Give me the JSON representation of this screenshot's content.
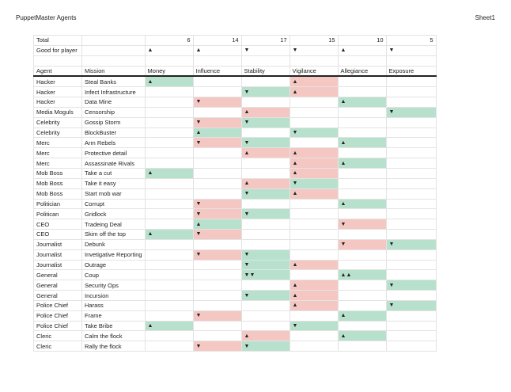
{
  "title": "PuppetMaster Agents",
  "sheet": "Sheet1",
  "totals": {
    "label": "Total",
    "values": [
      "6",
      "14",
      "17",
      "15",
      "10",
      "5"
    ]
  },
  "good_for_player": {
    "label": "Good for player",
    "values": [
      "▲",
      "▲",
      "▼",
      "▼",
      "▲",
      "▼"
    ]
  },
  "headers": [
    "Agent",
    "Mission",
    "Money",
    "Influence",
    "Stability",
    "Vigilance",
    "Allegiance",
    "Exposure"
  ],
  "colors": {
    "good": "#b7e1cd",
    "bad": "#f4c7c3"
  },
  "rows": [
    {
      "agent": "Hacker",
      "mission": "Steal Banks",
      "cells": [
        [
          "▲",
          "good"
        ],
        null,
        null,
        [
          "▲",
          "bad"
        ],
        null,
        null
      ]
    },
    {
      "agent": "Hacker",
      "mission": "Infect Infrastructure",
      "cells": [
        null,
        null,
        [
          "▼",
          "good"
        ],
        [
          "▲",
          "bad"
        ],
        null,
        null
      ]
    },
    {
      "agent": "Hacker",
      "mission": "Data Mine",
      "cells": [
        null,
        [
          "▼",
          "bad"
        ],
        null,
        null,
        [
          "▲",
          "good"
        ],
        null
      ]
    },
    {
      "agent": "Media Moguls",
      "mission": "Censorship",
      "cells": [
        null,
        null,
        [
          "▲",
          "bad"
        ],
        null,
        null,
        [
          "▼",
          "good"
        ]
      ]
    },
    {
      "agent": "Celebrity",
      "mission": "Gossip Storm",
      "cells": [
        null,
        [
          "▼",
          "bad"
        ],
        [
          "▼",
          "good"
        ],
        null,
        null,
        null
      ]
    },
    {
      "agent": "Celebrity",
      "mission": "BlockBuster",
      "cells": [
        null,
        [
          "▲",
          "good"
        ],
        null,
        [
          "▼",
          "good"
        ],
        null,
        null
      ]
    },
    {
      "agent": "Merc",
      "mission": "Arm Rebels",
      "cells": [
        null,
        [
          "▼",
          "bad"
        ],
        [
          "▼",
          "good"
        ],
        null,
        [
          "▲",
          "good"
        ],
        null
      ]
    },
    {
      "agent": "Merc",
      "mission": "Protective detail",
      "cells": [
        null,
        null,
        [
          "▲",
          "bad"
        ],
        [
          "▲",
          "bad"
        ],
        null,
        null
      ]
    },
    {
      "agent": "Merc",
      "mission": "Assassinate Rivals",
      "cells": [
        null,
        null,
        null,
        [
          "▲",
          "bad"
        ],
        [
          "▲",
          "good"
        ],
        null
      ]
    },
    {
      "agent": "Mob Boss",
      "mission": "Take a cut",
      "cells": [
        [
          "▲",
          "good"
        ],
        null,
        null,
        [
          "▲",
          "bad"
        ],
        null,
        null
      ]
    },
    {
      "agent": "Mob Boss",
      "mission": "Take it easy",
      "cells": [
        null,
        null,
        [
          "▲",
          "bad"
        ],
        [
          "▼",
          "good"
        ],
        null,
        null
      ]
    },
    {
      "agent": "Mob Boss",
      "mission": "Start mob war",
      "cells": [
        null,
        null,
        [
          "▼",
          "good"
        ],
        [
          "▲",
          "bad"
        ],
        null,
        null
      ]
    },
    {
      "agent": "Politician",
      "mission": "Corrupt",
      "cells": [
        null,
        [
          "▼",
          "bad"
        ],
        null,
        null,
        [
          "▲",
          "good"
        ],
        null
      ]
    },
    {
      "agent": "Politican",
      "mission": "Gridlock",
      "cells": [
        null,
        [
          "▼",
          "bad"
        ],
        [
          "▼",
          "good"
        ],
        null,
        null,
        null
      ]
    },
    {
      "agent": "CEO",
      "mission": "Tradeing Deal",
      "cells": [
        null,
        [
          "▲",
          "good"
        ],
        null,
        null,
        [
          "▼",
          "bad"
        ],
        null
      ]
    },
    {
      "agent": "CEO",
      "mission": "Skim off the top",
      "cells": [
        [
          "▲",
          "good"
        ],
        [
          "▼",
          "bad"
        ],
        null,
        null,
        null,
        null
      ]
    },
    {
      "agent": "Journalist",
      "mission": "Debunk",
      "cells": [
        null,
        null,
        null,
        null,
        [
          "▼",
          "bad"
        ],
        [
          "▼",
          "good"
        ]
      ]
    },
    {
      "agent": "Journalist",
      "mission": "Invetigative Reporting",
      "cells": [
        null,
        [
          "▼",
          "bad"
        ],
        [
          "▼",
          "good"
        ],
        null,
        null,
        null
      ]
    },
    {
      "agent": "Journalist",
      "mission": "Outrage",
      "cells": [
        null,
        null,
        [
          "▼",
          "good"
        ],
        [
          "▲",
          "bad"
        ],
        null,
        null
      ]
    },
    {
      "agent": "General",
      "mission": "Coup",
      "cells": [
        null,
        null,
        [
          "▼▼",
          "good"
        ],
        null,
        [
          "▲▲",
          "good"
        ],
        null
      ]
    },
    {
      "agent": "General",
      "mission": "Security Ops",
      "cells": [
        null,
        null,
        null,
        [
          "▲",
          "bad"
        ],
        null,
        [
          "▼",
          "good"
        ]
      ]
    },
    {
      "agent": "General",
      "mission": "Incursion",
      "cells": [
        null,
        null,
        [
          "▼",
          "good"
        ],
        [
          "▲",
          "bad"
        ],
        null,
        null
      ]
    },
    {
      "agent": "Police Chief",
      "mission": "Harass",
      "cells": [
        null,
        null,
        null,
        [
          "▲",
          "bad"
        ],
        null,
        [
          "▼",
          "good"
        ]
      ]
    },
    {
      "agent": "Police Chief",
      "mission": "Frame",
      "cells": [
        null,
        [
          "▼",
          "bad"
        ],
        null,
        null,
        [
          "▲",
          "good"
        ],
        null
      ]
    },
    {
      "agent": "Police Chief",
      "mission": "Take Bribe",
      "cells": [
        [
          "▲",
          "good"
        ],
        null,
        null,
        [
          "▼",
          "good"
        ],
        null,
        null
      ]
    },
    {
      "agent": "Cleric",
      "mission": "Calm the flock",
      "cells": [
        null,
        null,
        [
          "▲",
          "bad"
        ],
        null,
        [
          "▲",
          "good"
        ],
        null
      ]
    },
    {
      "agent": "Cleric",
      "mission": "Rally the flock",
      "cells": [
        null,
        [
          "▼",
          "bad"
        ],
        [
          "▼",
          "good"
        ],
        null,
        null,
        null
      ]
    }
  ]
}
